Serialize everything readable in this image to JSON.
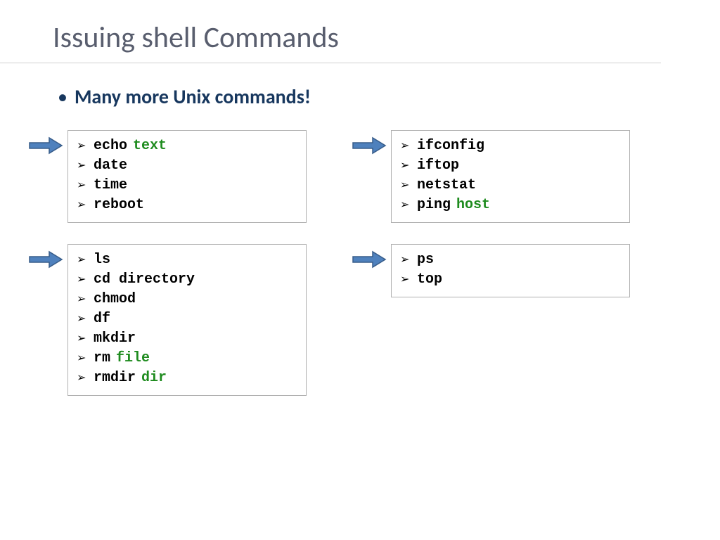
{
  "title": "Issuing shell Commands",
  "subtitle": "Many more Unix commands!",
  "colors": {
    "title": "#595e6e",
    "subtitle": "#17375e",
    "arrow_fill": "#4f81bd",
    "arrow_stroke": "#385d8a",
    "box_border": "#b0b0b0",
    "arg": "#1e8b1e",
    "cmd": "#000000"
  },
  "fonts": {
    "title_family": "Calibri",
    "cmd_family": "Courier New",
    "title_size": 42,
    "subtitle_size": 28,
    "cmd_size": 20
  },
  "chevron": "➢",
  "blocks": {
    "top_left": [
      {
        "cmd": "echo",
        "arg": "text"
      },
      {
        "cmd": "date"
      },
      {
        "cmd": "time"
      },
      {
        "cmd": "reboot"
      }
    ],
    "top_right": [
      {
        "cmd": "ifconfig"
      },
      {
        "cmd": "iftop"
      },
      {
        "cmd": "netstat"
      },
      {
        "cmd": "ping",
        "arg": "host"
      }
    ],
    "bottom_left": [
      {
        "cmd": "ls"
      },
      {
        "cmd": "cd directory"
      },
      {
        "cmd": "chmod"
      },
      {
        "cmd": "df"
      },
      {
        "cmd": "mkdir"
      },
      {
        "cmd": "rm",
        "arg": "file"
      },
      {
        "cmd": "rmdir",
        "arg": "dir"
      }
    ],
    "bottom_right": [
      {
        "cmd": "ps"
      },
      {
        "cmd": "top"
      }
    ]
  }
}
